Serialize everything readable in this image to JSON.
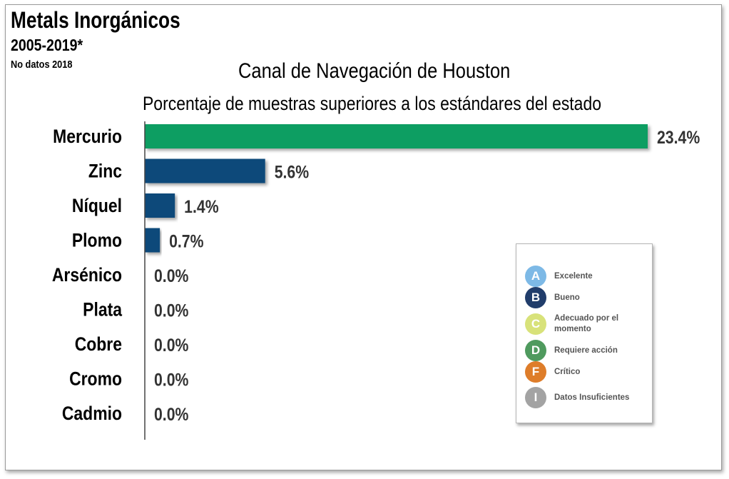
{
  "header": {
    "title": "Metals Inorgánicos",
    "years": "2005-2019*",
    "note": "No datos 2018",
    "location": "Canal de Navegación de Houston",
    "description": "Porcentaje de muestras superiores a los estándares del estado"
  },
  "chart_data": {
    "type": "bar",
    "orientation": "horizontal",
    "title": "Canal de Navegación de Houston",
    "subtitle": "Porcentaje de muestras superiores a los estándares del estado",
    "categories": [
      "Mercurio",
      "Zinc",
      "Níquel",
      "Plomo",
      "Arsénico",
      "Plata",
      "Cobre",
      "Cromo",
      "Cadmio"
    ],
    "values": [
      23.4,
      5.6,
      1.4,
      0.7,
      0.0,
      0.0,
      0.0,
      0.0,
      0.0
    ],
    "value_labels": [
      "23.4%",
      "5.6%",
      "1.4%",
      "0.7%",
      "0.0%",
      "0.0%",
      "0.0%",
      "0.0%",
      "0.0%"
    ],
    "bar_colors": [
      "#0b9e62",
      "#0f4a7a",
      "#0f4a7a",
      "#0f4a7a",
      "#0f4a7a",
      "#0f4a7a",
      "#0f4a7a",
      "#0f4a7a",
      "#0f4a7a"
    ],
    "xlim": [
      0,
      23.4
    ],
    "xlabel": "",
    "ylabel": "",
    "grid": false
  },
  "legend": {
    "items": [
      {
        "letter": "A",
        "label": "Excelente",
        "color": "#7db9e6"
      },
      {
        "letter": "B",
        "label": "Bueno",
        "color": "#213d6b"
      },
      {
        "letter": "C",
        "label": "Adecuado por el momento",
        "color": "#d8e27a"
      },
      {
        "letter": "D",
        "label": "Requiere acción",
        "color": "#4f9a5e"
      },
      {
        "letter": "F",
        "label": "Crítico",
        "color": "#de7d2a"
      },
      {
        "letter": "I",
        "label": "Datos Insuficientes",
        "color": "#a3a3a3"
      }
    ]
  }
}
